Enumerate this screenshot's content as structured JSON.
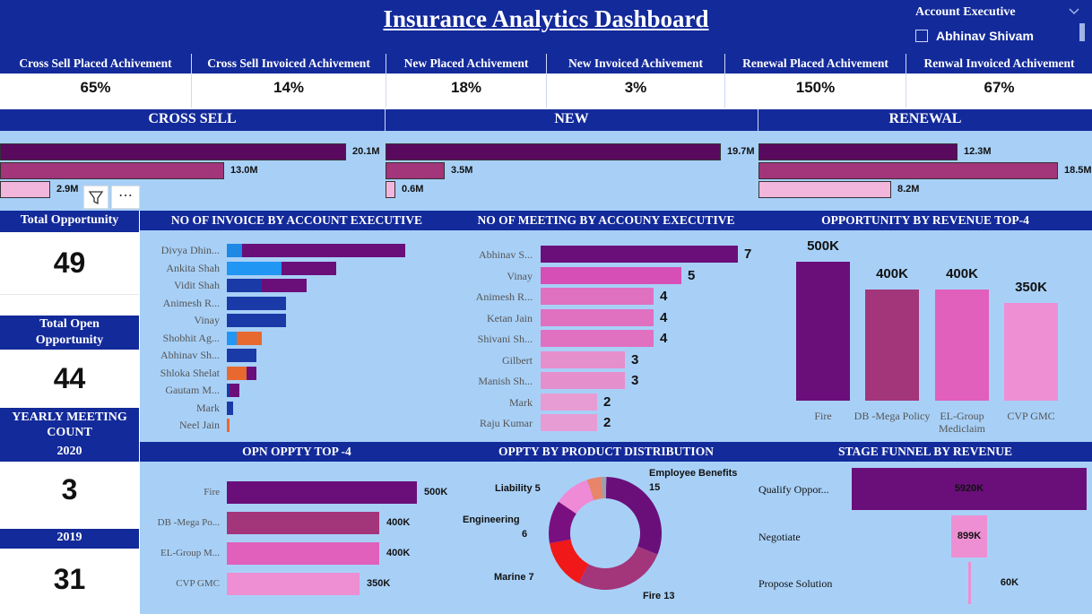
{
  "header": {
    "title": "Insurance Analytics Dashboard",
    "slicer_label": "Account Executive",
    "slicer_option": "Abhinav Shivam"
  },
  "kpis": [
    {
      "label": "Cross Sell Placed Achivement",
      "value": "65%"
    },
    {
      "label": "Cross Sell Invoiced Achivement",
      "value": "14%"
    },
    {
      "label": "New Placed Achivement",
      "value": "18%"
    },
    {
      "label": "New Invoiced Achivement",
      "value": "3%"
    },
    {
      "label": "Renewal Placed Achivement",
      "value": "150%"
    },
    {
      "label": "Renwal Invoiced Achivement",
      "value": "67%"
    }
  ],
  "sections": {
    "cross_sell": {
      "title": "CROSS SELL",
      "bars": [
        {
          "value": 20.1,
          "label": "20.1M",
          "color": "#5a0a5e"
        },
        {
          "value": 13.0,
          "label": "13.0M",
          "color": "#a3357a"
        },
        {
          "value": 2.9,
          "label": "2.9M",
          "color": "#f2b6dc"
        }
      ],
      "max": 20.1
    },
    "new": {
      "title": "NEW",
      "bars": [
        {
          "value": 19.7,
          "label": "19.7M",
          "color": "#5a0a5e"
        },
        {
          "value": 3.5,
          "label": "3.5M",
          "color": "#a3357a"
        },
        {
          "value": 0.6,
          "label": "0.6M",
          "color": "#f2b6dc"
        }
      ],
      "max": 19.7
    },
    "renewal": {
      "title": "RENEWAL",
      "bars": [
        {
          "value": 12.3,
          "label": "12.3M",
          "color": "#5a0a5e"
        },
        {
          "value": 18.5,
          "label": "18.5M",
          "color": "#a3357a"
        },
        {
          "value": 8.2,
          "label": "8.2M",
          "color": "#f2b6dc"
        }
      ],
      "max": 18.5
    }
  },
  "side": {
    "total_opportunity_label": "Total Opportunity",
    "total_opportunity_value": "49",
    "total_open_label": "Total Open Opportunity",
    "total_open_value": "44",
    "yearly_meeting_label": "YEARLY MEETING COUNT",
    "year_2020_label": "2020",
    "year_2020_value": "3",
    "year_2019_label": "2019",
    "year_2019_value": "31"
  },
  "invoice_panel": {
    "title": "NO OF INVOICE BY ACCOUNT EXECUTIVE",
    "rows": [
      {
        "name": "Divya Dhin...",
        "segments": [
          {
            "v": 3,
            "c": "#1e88e5"
          },
          {
            "v": 33,
            "c": "#6a0f7a"
          }
        ]
      },
      {
        "name": "Ankita Shah",
        "segments": [
          {
            "v": 11,
            "c": "#2196f3"
          },
          {
            "v": 11,
            "c": "#6a0f7a"
          }
        ]
      },
      {
        "name": "Vidit Shah",
        "segments": [
          {
            "v": 7,
            "c": "#1a3aa8"
          },
          {
            "v": 9,
            "c": "#6a0f7a"
          }
        ]
      },
      {
        "name": "Animesh R...",
        "segments": [
          {
            "v": 12,
            "c": "#1a3aa8"
          }
        ]
      },
      {
        "name": "Vinay",
        "segments": [
          {
            "v": 12,
            "c": "#1a3aa8"
          }
        ]
      },
      {
        "name": "Shobhit Ag...",
        "segments": [
          {
            "v": 2,
            "c": "#2196f3"
          },
          {
            "v": 5,
            "c": "#e8692f"
          }
        ]
      },
      {
        "name": "Abhinav Sh...",
        "segments": [
          {
            "v": 6,
            "c": "#1a3aa8"
          }
        ]
      },
      {
        "name": "Shloka Shelat",
        "segments": [
          {
            "v": 4,
            "c": "#e8692f"
          },
          {
            "v": 2,
            "c": "#6a0f7a"
          }
        ]
      },
      {
        "name": "Gautam M...",
        "segments": [
          {
            "v": 0.6,
            "c": "#1a3aa8"
          },
          {
            "v": 2,
            "c": "#6a0f7a"
          }
        ]
      },
      {
        "name": "Mark",
        "segments": [
          {
            "v": 1.2,
            "c": "#1a3aa8"
          }
        ]
      },
      {
        "name": "Neel Jain",
        "segments": [
          {
            "v": 0.6,
            "c": "#e8692f"
          }
        ]
      }
    ],
    "max": 40
  },
  "meeting_panel": {
    "title": "NO OF MEETING BY ACCOUNY EXECUTIVE",
    "rows": [
      {
        "name": "Abhinav S...",
        "value": 7,
        "color": "#6a0f7a"
      },
      {
        "name": "Vinay",
        "value": 5,
        "color": "#d64fb6"
      },
      {
        "name": "Animesh R...",
        "value": 4,
        "color": "#e070c0"
      },
      {
        "name": "Ketan Jain",
        "value": 4,
        "color": "#e070c0"
      },
      {
        "name": "Shivani Sh...",
        "value": 4,
        "color": "#e070c0"
      },
      {
        "name": "Gilbert",
        "value": 3,
        "color": "#e58fcd"
      },
      {
        "name": "Manish Sh...",
        "value": 3,
        "color": "#e58fcd"
      },
      {
        "name": "Mark",
        "value": 2,
        "color": "#e79cd3"
      },
      {
        "name": "Raju Kumar",
        "value": 2,
        "color": "#e79cd3"
      }
    ],
    "max": 7
  },
  "revenue_top4": {
    "title": "OPPORTUNITY BY REVENUE TOP-4",
    "bars": [
      {
        "name": "Fire",
        "value": 500,
        "label": "500K",
        "color": "#6a0f7a"
      },
      {
        "name": "DB -Mega Policy",
        "value": 400,
        "label": "400K",
        "color": "#a3357a"
      },
      {
        "name": "EL-Group Mediclaim",
        "value": 400,
        "label": "400K",
        "color": "#e060bc"
      },
      {
        "name": "CVP GMC",
        "value": 350,
        "label": "350K",
        "color": "#ed8fd2"
      }
    ],
    "max": 500
  },
  "open_top4": {
    "title": "OPN OPPTY TOP -4",
    "rows": [
      {
        "name": "Fire",
        "value": 500,
        "label": "500K",
        "color": "#6a0f7a"
      },
      {
        "name": "DB -Mega Po...",
        "value": 400,
        "label": "400K",
        "color": "#a3357a"
      },
      {
        "name": "EL-Group M...",
        "value": 400,
        "label": "400K",
        "color": "#e060bc"
      },
      {
        "name": "CVP GMC",
        "value": 350,
        "label": "350K",
        "color": "#ed8fd2"
      }
    ],
    "max": 500
  },
  "product_distribution": {
    "title": "OPPTY BY PRODUCT DISTRIBUTION",
    "slices": [
      {
        "name": "Employee Benefits",
        "value": 15,
        "color": "#6a0f7a"
      },
      {
        "name": "Fire",
        "value": 13,
        "color": "#a3357a"
      },
      {
        "name": "Marine",
        "value": 7,
        "color": "#f01818"
      },
      {
        "name": "Engineering",
        "value": 6,
        "color": "#7a1080"
      },
      {
        "name": "Liability",
        "value": 5,
        "color": "#ef8ad6"
      },
      {
        "name": "",
        "value": 2,
        "color": "#e8846a"
      },
      {
        "name": "",
        "value": 0.7,
        "color": "#9aa0a8"
      }
    ],
    "labels": [
      {
        "text": "Employee Benefits",
        "value": "15"
      },
      {
        "text": "Fire 13"
      },
      {
        "text": "Marine 7"
      },
      {
        "text": "Engineering",
        "value": "6"
      },
      {
        "text": "Liability 5"
      }
    ]
  },
  "funnel": {
    "title": "STAGE FUNNEL BY REVENUE",
    "rows": [
      {
        "name": "Qualify Oppor...",
        "value": 5920,
        "label": "5920K",
        "color": "#6a0f7a"
      },
      {
        "name": "Negotiate",
        "value": 899,
        "label": "899K",
        "color": "#ed8fd2"
      },
      {
        "name": "Propose Solution",
        "value": 60,
        "label": "60K",
        "color": "#ed8fd2"
      }
    ],
    "max": 5920
  }
}
